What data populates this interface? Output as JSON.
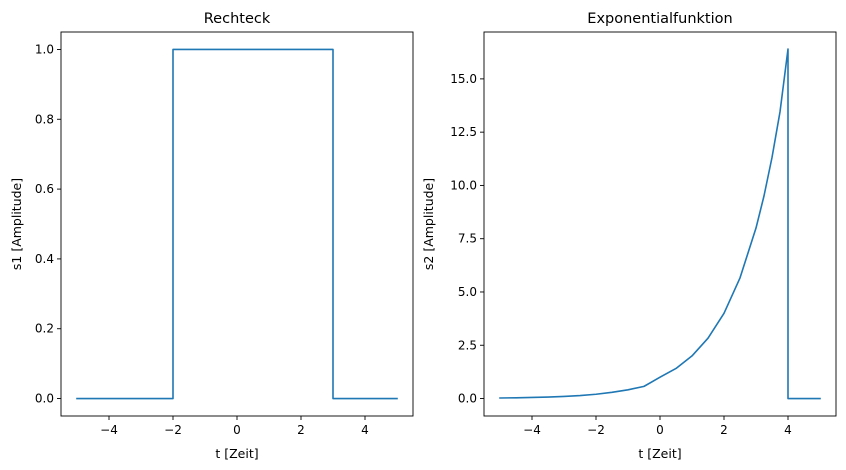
{
  "colors": {
    "series": "#1f77b4",
    "axes": "#000000",
    "background": "#ffffff"
  },
  "chart_data": [
    {
      "type": "line",
      "title": "Rechteck",
      "xlabel": "t [Zeit]",
      "ylabel": "s1 [Amplitude]",
      "xlim": [
        -5.5,
        5.5
      ],
      "ylim": [
        -0.05,
        1.05
      ],
      "grid": false,
      "xticks": [
        {
          "value": -4,
          "label": "−4"
        },
        {
          "value": -2,
          "label": "−2"
        },
        {
          "value": 0,
          "label": "0"
        },
        {
          "value": 2,
          "label": "2"
        },
        {
          "value": 4,
          "label": "4"
        }
      ],
      "yticks": [
        {
          "value": 0.0,
          "label": "0.0"
        },
        {
          "value": 0.2,
          "label": "0.2"
        },
        {
          "value": 0.4,
          "label": "0.4"
        },
        {
          "value": 0.6,
          "label": "0.6"
        },
        {
          "value": 0.8,
          "label": "0.8"
        },
        {
          "value": 1.0,
          "label": "1.0"
        }
      ],
      "series": [
        {
          "color": "#1f77b4",
          "x": [
            -5,
            -2,
            -2,
            3,
            3,
            5
          ],
          "y": [
            0,
            0,
            1,
            1,
            0,
            0
          ]
        }
      ]
    },
    {
      "type": "line",
      "title": "Exponentialfunktion",
      "xlabel": "t [Zeit]",
      "ylabel": "s2 [Amplitude]",
      "xlim": [
        -5.5,
        5.5
      ],
      "ylim": [
        -0.82,
        17.2
      ],
      "grid": false,
      "xticks": [
        {
          "value": -4,
          "label": "−4"
        },
        {
          "value": -2,
          "label": "−2"
        },
        {
          "value": 0,
          "label": "0"
        },
        {
          "value": 2,
          "label": "2"
        },
        {
          "value": 4,
          "label": "4"
        }
      ],
      "yticks": [
        {
          "value": 0.0,
          "label": "0.0"
        },
        {
          "value": 2.5,
          "label": "2.5"
        },
        {
          "value": 5.0,
          "label": "5.0"
        },
        {
          "value": 7.5,
          "label": "7.5"
        },
        {
          "value": 10.0,
          "label": "10.0"
        },
        {
          "value": 12.5,
          "label": "12.5"
        },
        {
          "value": 15.0,
          "label": "15.0"
        }
      ],
      "series": [
        {
          "color": "#1f77b4",
          "x": [
            -5,
            -4.5,
            -4,
            -3.5,
            -3,
            -2.5,
            -2,
            -1.5,
            -1,
            -0.5,
            0,
            0.5,
            1,
            1.5,
            2,
            2.5,
            3,
            3.25,
            3.5,
            3.75,
            4,
            4,
            5
          ],
          "y": [
            0.025,
            0.035,
            0.05,
            0.07,
            0.1,
            0.14,
            0.2,
            0.29,
            0.41,
            0.57,
            1.0,
            1.41,
            2.0,
            2.83,
            4.0,
            5.66,
            8.0,
            9.51,
            11.31,
            13.45,
            16.4,
            0,
            0
          ]
        }
      ]
    }
  ]
}
